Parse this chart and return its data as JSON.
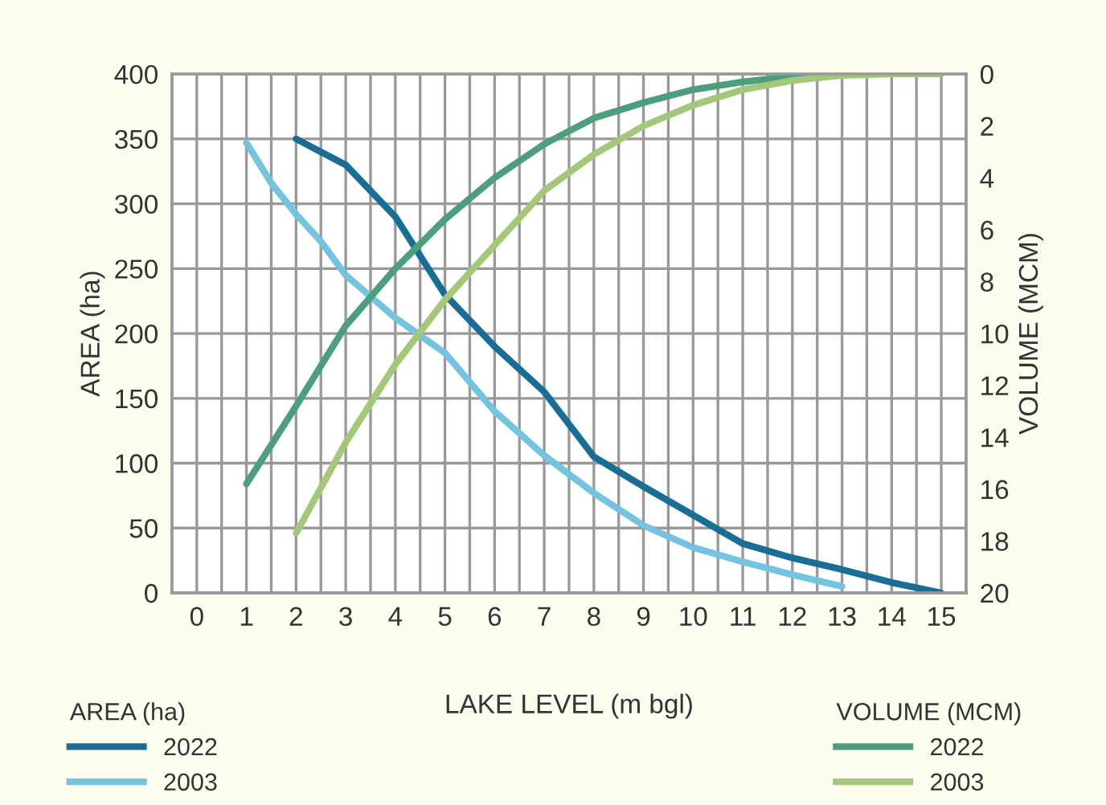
{
  "chart_data": {
    "type": "line",
    "xlabel": "LAKE LEVEL (m bgl)",
    "ylabel": "AREA (ha)",
    "y2label": "VOLUME (MCM)",
    "legend_title": [
      "AREA (ha)",
      "VOLUME (MCM)"
    ],
    "xlim": [
      -0.5,
      15.5
    ],
    "xticks": [
      0,
      1,
      2,
      3,
      4,
      5,
      6,
      7,
      8,
      9,
      10,
      11,
      12,
      13,
      14,
      15,
      {
        "value": 0.5,
        "label": null
      },
      {
        "value": 1.5,
        "label": null
      },
      {
        "value": 2.5,
        "label": null
      },
      {
        "value": 3.5,
        "label": null
      },
      {
        "value": 4.5,
        "label": null
      },
      {
        "value": 5.5,
        "label": null
      },
      {
        "value": 6.5,
        "label": null
      },
      {
        "value": 7.5,
        "label": null
      },
      {
        "value": 8.5,
        "label": null
      },
      {
        "value": 9.5,
        "label": null
      },
      {
        "value": 10.5,
        "label": null
      },
      {
        "value": 11.5,
        "label": null
      },
      {
        "value": 12.5,
        "label": null
      },
      {
        "value": 13.5,
        "label": null
      },
      {
        "value": 14.5,
        "label": null
      }
    ],
    "ylim": [
      0,
      400
    ],
    "yticks": [
      0,
      50,
      100,
      150,
      200,
      250,
      300,
      350,
      400
    ],
    "y2lim": [
      20,
      0
    ],
    "y2ticks": [
      0,
      2,
      4,
      6,
      8,
      10,
      12,
      14,
      16,
      18,
      20
    ],
    "grid": true,
    "legend": "bottom",
    "marker": "none",
    "line_style": "solid",
    "series": [
      {
        "name": "2022",
        "color": "#1a6e96",
        "axis": "y",
        "x": [
          2,
          3,
          4,
          5,
          6,
          7,
          8,
          9,
          10,
          11,
          12,
          13,
          14,
          15
        ],
        "values": [
          350,
          330,
          290,
          230,
          190,
          155,
          105,
          82,
          60,
          38,
          27,
          18,
          8,
          0
        ]
      },
      {
        "name": "2003",
        "color": "#74c3e0",
        "axis": "y",
        "x": [
          1,
          1.5,
          2,
          2.5,
          3,
          4,
          5,
          6,
          7,
          8,
          9,
          10,
          11,
          12,
          13
        ],
        "values": [
          347,
          316,
          292,
          271,
          245,
          212,
          185,
          140,
          106,
          77,
          52,
          35,
          24,
          14,
          5
        ]
      },
      {
        "name": "2022",
        "color": "#4c9e7c",
        "axis": "y2",
        "x": [
          1,
          2,
          3,
          4,
          5,
          6,
          7,
          8,
          9,
          10,
          11,
          12,
          13
        ],
        "values": [
          15.8,
          12.8,
          9.7,
          7.5,
          5.6,
          4.0,
          2.7,
          1.7,
          1.1,
          0.6,
          0.3,
          0.1,
          0
        ]
      },
      {
        "name": "2003",
        "color": "#a5c77a",
        "axis": "y2",
        "x": [
          2,
          3,
          4,
          5,
          6,
          7,
          8,
          9,
          10,
          11,
          12,
          13,
          14,
          15
        ],
        "values": [
          17.7,
          14.2,
          11.2,
          8.7,
          6.6,
          4.5,
          3.1,
          2.0,
          1.2,
          0.6,
          0.25,
          0.05,
          0,
          0
        ]
      }
    ]
  }
}
